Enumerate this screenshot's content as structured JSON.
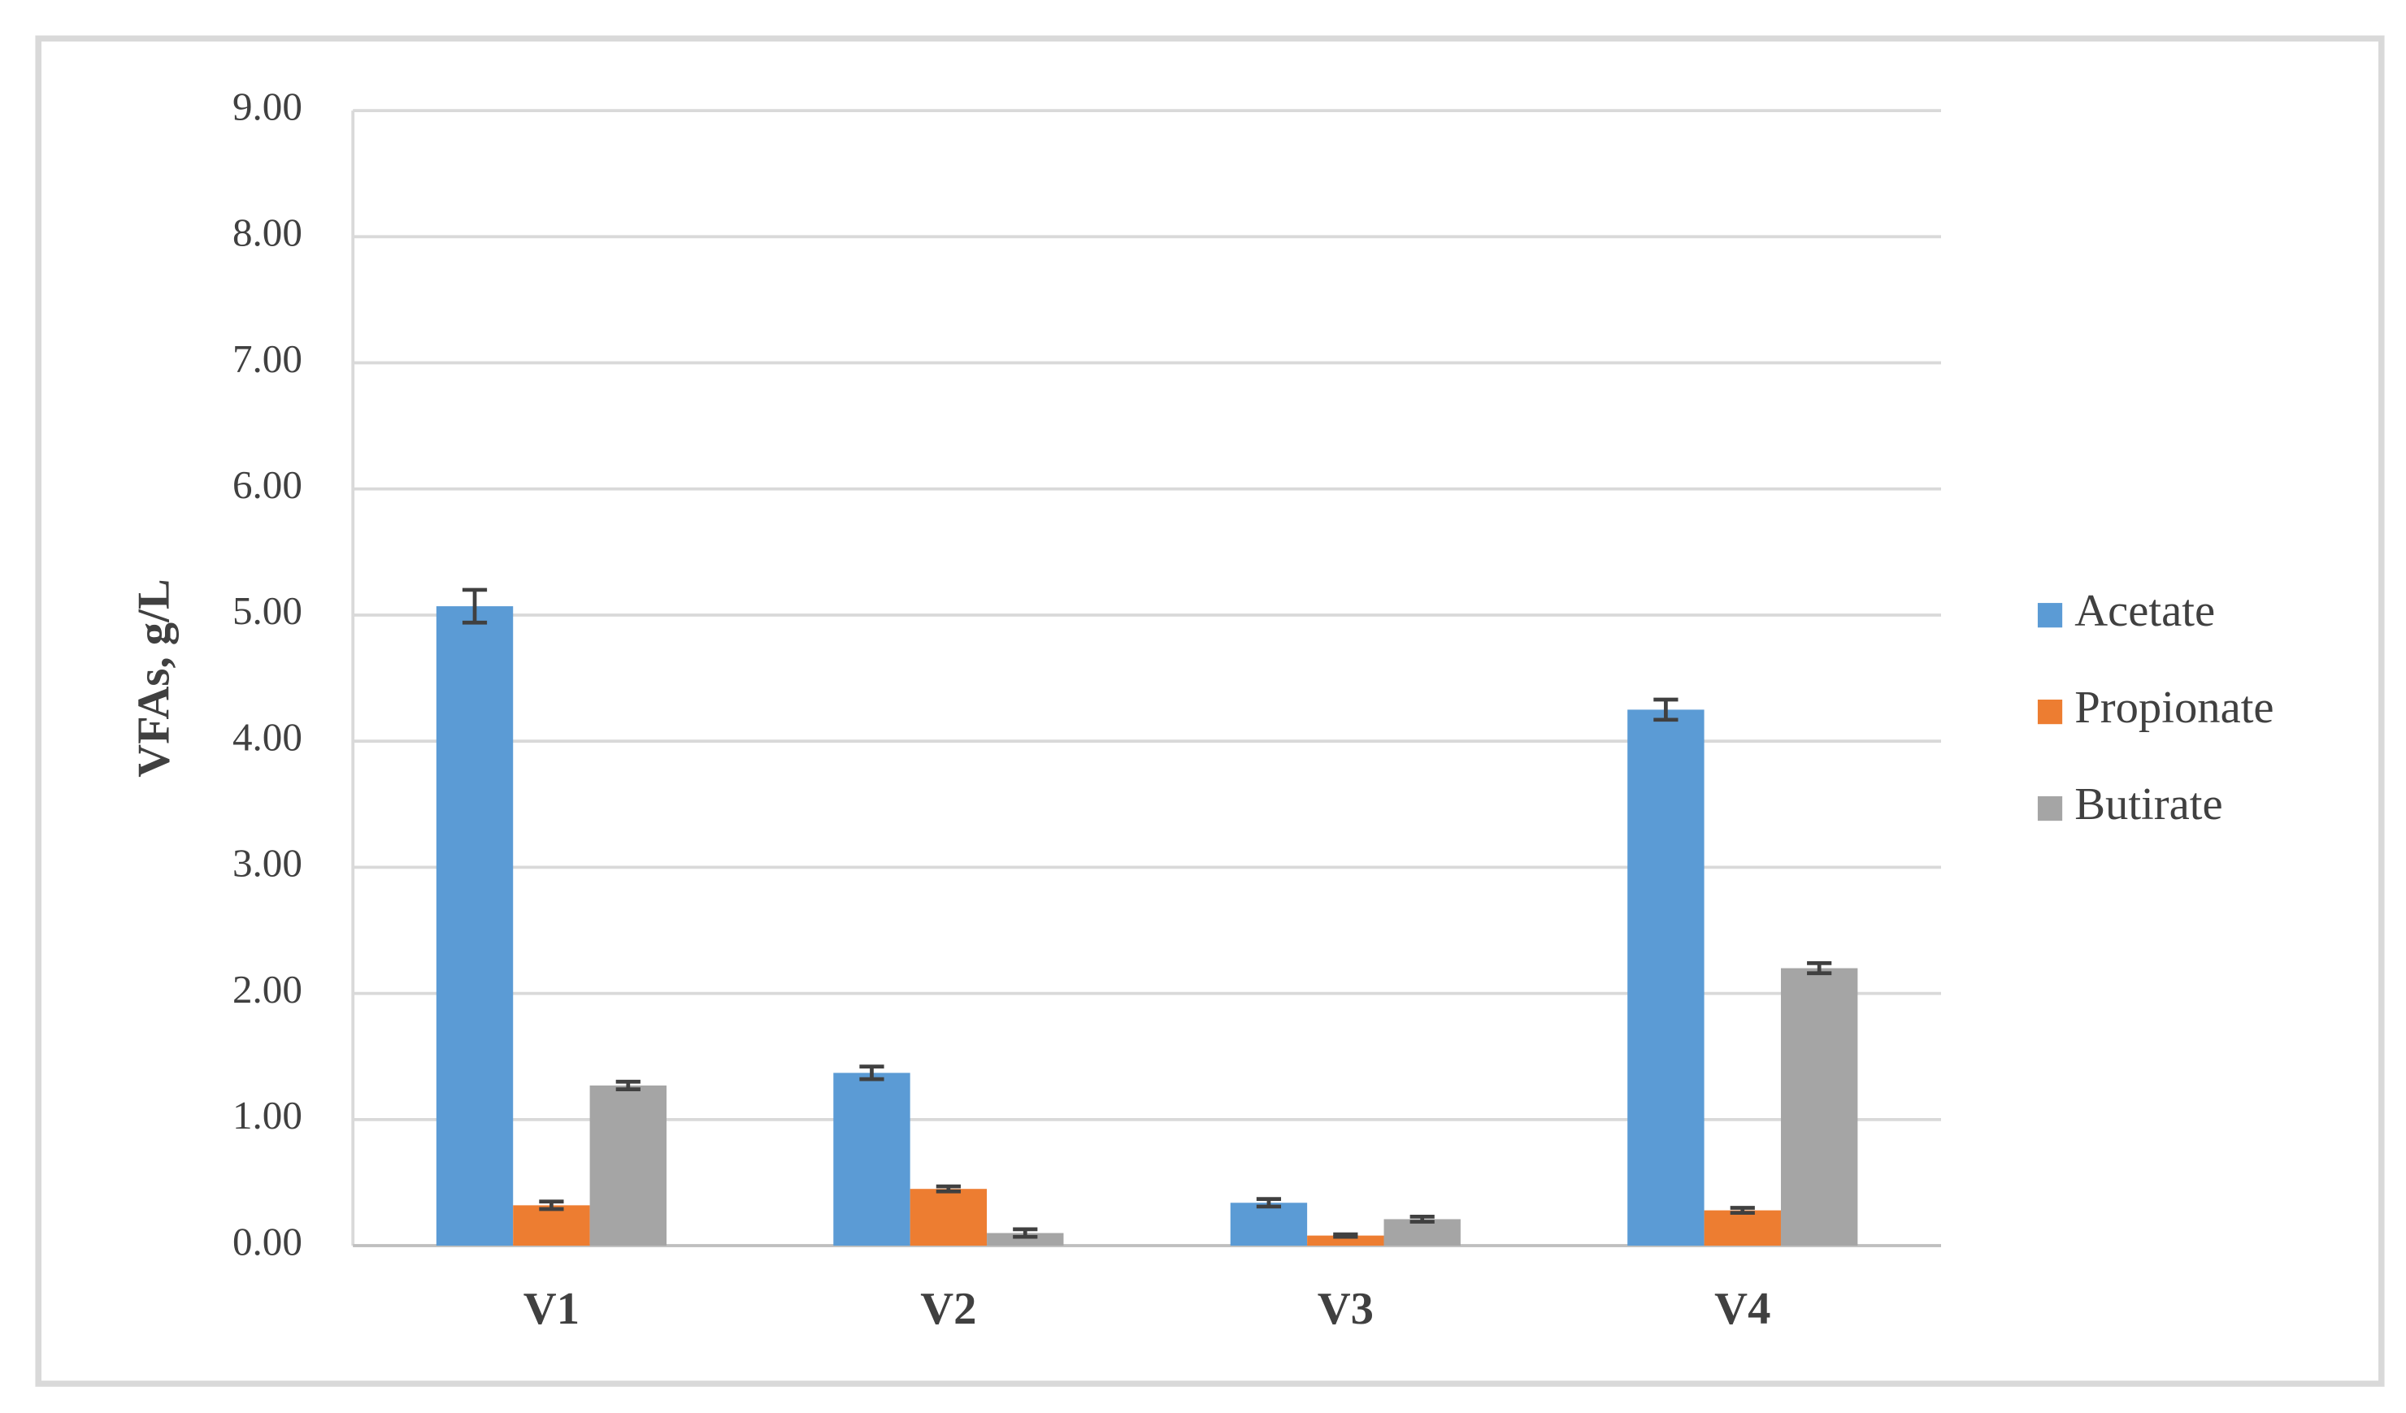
{
  "chart_data": {
    "type": "bar",
    "y_label": "VFAs, g/L",
    "categories": [
      "V1",
      "V2",
      "V3",
      "V4"
    ],
    "series": [
      {
        "name": "Acetate",
        "color": "#5b9bd5",
        "values": [
          5.07,
          1.37,
          0.34,
          4.25
        ],
        "errors": [
          0.13,
          0.05,
          0.03,
          0.08
        ]
      },
      {
        "name": "Propionate",
        "color": "#ed7d31",
        "values": [
          0.32,
          0.45,
          0.08,
          0.28
        ],
        "errors": [
          0.03,
          0.02,
          0.01,
          0.02
        ]
      },
      {
        "name": "Butirate",
        "color": "#a5a5a5",
        "values": [
          1.27,
          0.1,
          0.21,
          2.2
        ],
        "errors": [
          0.03,
          0.03,
          0.02,
          0.04
        ]
      }
    ],
    "ylim": [
      0,
      9
    ],
    "yticks": [
      {
        "value": 0,
        "label": "0.00"
      },
      {
        "value": 1,
        "label": "1.00"
      },
      {
        "value": 2,
        "label": "2.00"
      },
      {
        "value": 3,
        "label": "3.00"
      },
      {
        "value": 4,
        "label": "4.00"
      },
      {
        "value": 5,
        "label": "5.00"
      },
      {
        "value": 6,
        "label": "6.00"
      },
      {
        "value": 7,
        "label": "7.00"
      },
      {
        "value": 8,
        "label": "8.00"
      },
      {
        "value": 9,
        "label": "9.00"
      }
    ],
    "grid": true,
    "legend": "right"
  }
}
